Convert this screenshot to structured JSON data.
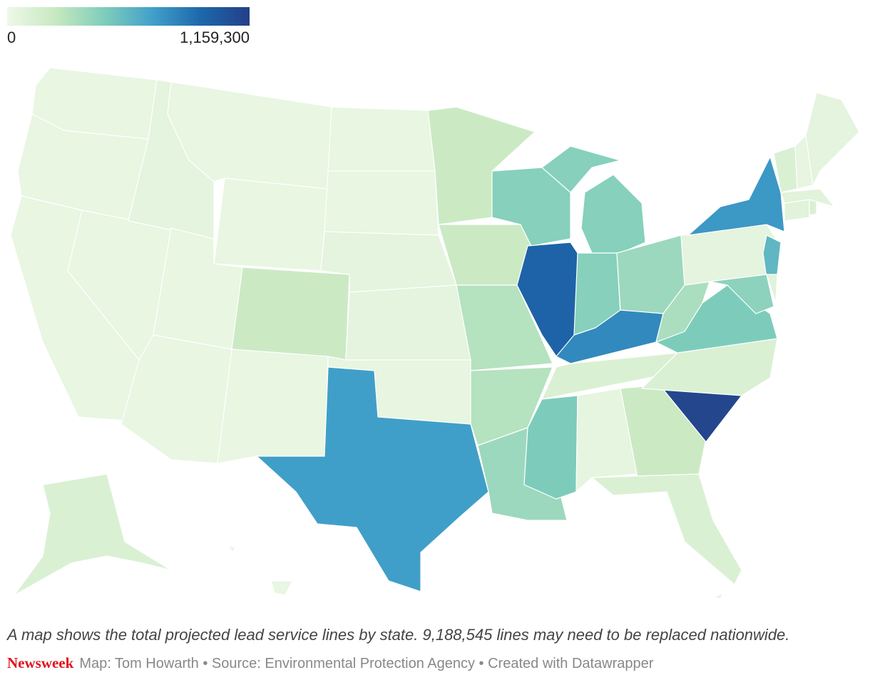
{
  "chart_data": {
    "type": "choropleth",
    "legend_ticks": [
      0,
      {
        "value": 1159300,
        "label": "1,159,300"
      }
    ],
    "colors": [
      "#eef8e8",
      "#c7e9c0",
      "#7fcdbb",
      "#41a0c9",
      "#1d67ab",
      "#243f87"
    ],
    "values": [
      35000,
      35000,
      35000,
      35000,
      60000,
      35000,
      35000,
      35000,
      35000,
      210000,
      35000,
      35000,
      35000,
      60000,
      60000,
      40000,
      700000,
      210000,
      210000,
      290000,
      290000,
      370000,
      440000,
      950000,
      440000,
      440000,
      370000,
      790000,
      120000,
      470000,
      50000,
      210000,
      120000,
      1120000,
      120000,
      470000,
      325000,
      60000,
      730000,
      580000,
      420000,
      80000,
      80000,
      120000,
      80000,
      120000,
      40000,
      60000,
      120000,
      35000,
      35000
    ],
    "caption": "A map shows the total projected lead service lines by state. 9,188,545 lines may need to be replaced nationwide.",
    "brand": "Newsweek",
    "credit": "Map: Tom Howarth • Source: Environmental Protection Agency • Created with Datawrapper"
  }
}
